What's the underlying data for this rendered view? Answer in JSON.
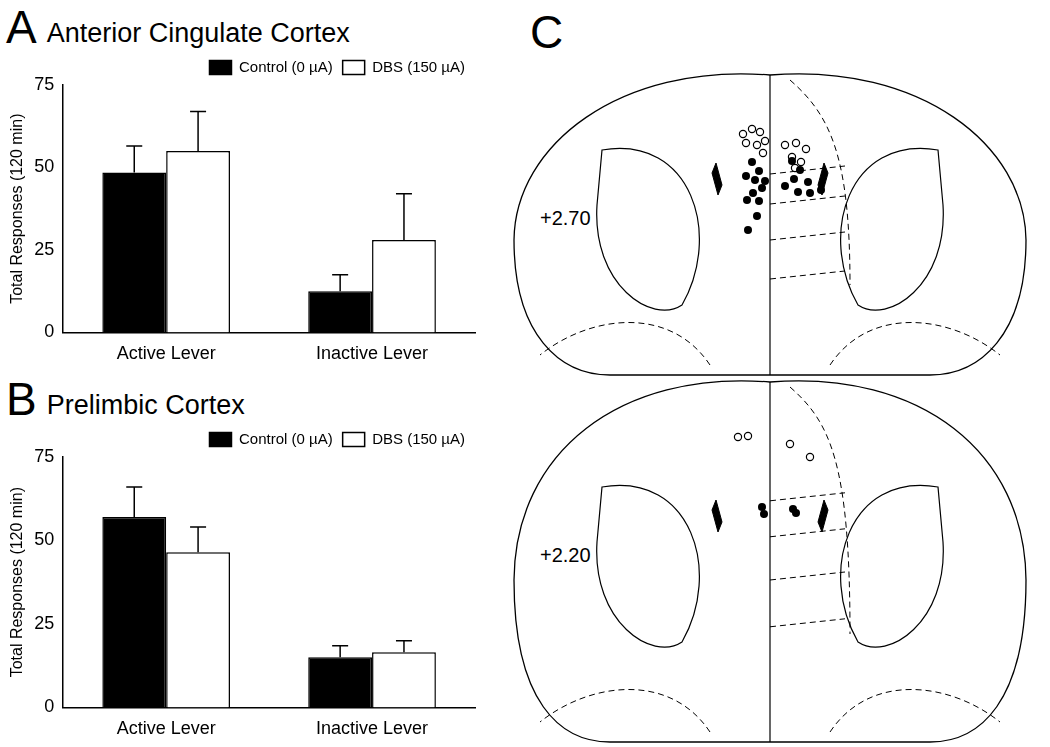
{
  "chart_data": [
    {
      "panel": "A",
      "type": "bar",
      "title": "Anterior Cingulate Cortex",
      "y_label": "Total Responses (120 min)",
      "categories": [
        "Active Lever",
        "Inactive Lever"
      ],
      "series": [
        {
          "name": "Control (0 µA)",
          "color": "#000000",
          "values": [
            48.5,
            12.5
          ],
          "errors": [
            8,
            5
          ]
        },
        {
          "name": "DBS (150 µA)",
          "color": "#ffffff",
          "values": [
            55,
            28
          ],
          "errors": [
            12,
            14
          ]
        }
      ],
      "ylim": [
        0,
        75
      ],
      "yticks": [
        0,
        25,
        50,
        75
      ],
      "grid": false,
      "legend": "upper right"
    },
    {
      "panel": "B",
      "type": "bar",
      "title": "Prelimbic Cortex",
      "y_label": "Total Responses (120 min)",
      "categories": [
        "Active Lever",
        "Inactive Lever"
      ],
      "series": [
        {
          "name": "Control (0 µA)",
          "color": "#000000",
          "values": [
            57,
            15
          ],
          "errors": [
            9,
            3.5
          ]
        },
        {
          "name": "DBS (150 µA)",
          "color": "#ffffff",
          "values": [
            46.5,
            16.5
          ],
          "errors": [
            7.5,
            3.5
          ]
        }
      ],
      "ylim": [
        0,
        75
      ],
      "yticks": [
        0,
        25,
        50,
        75
      ],
      "grid": false,
      "legend": "upper right"
    }
  ],
  "diagram": {
    "panel": "C",
    "sections": [
      {
        "label": "+2.70"
      },
      {
        "label": "+2.20"
      }
    ]
  }
}
